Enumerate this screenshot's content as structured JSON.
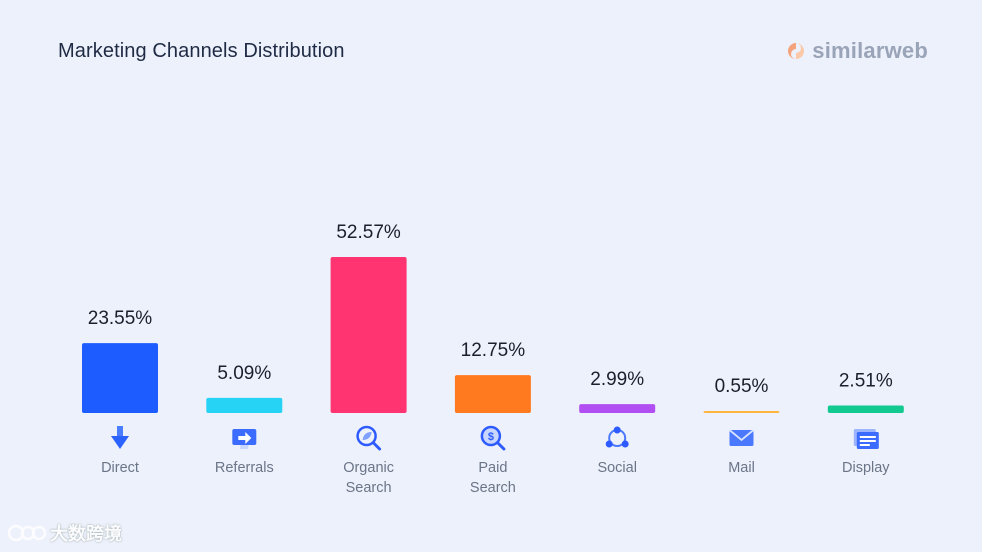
{
  "title": "Marketing Channels Distribution",
  "brand": {
    "name": "similarweb",
    "icon": "similarweb-logo-icon"
  },
  "watermark": {
    "text": "大数跨境"
  },
  "chart_data": {
    "type": "bar",
    "title": "Marketing Channels Distribution",
    "categories": [
      "Direct",
      "Referrals",
      "Organic Search",
      "Paid Search",
      "Social",
      "Mail",
      "Display"
    ],
    "labels": [
      [
        "Direct"
      ],
      [
        "Referrals"
      ],
      [
        "Organic",
        "Search"
      ],
      [
        "Paid",
        "Search"
      ],
      [
        "Social"
      ],
      [
        "Mail"
      ],
      [
        "Display"
      ]
    ],
    "values": [
      23.55,
      5.09,
      52.57,
      12.75,
      2.99,
      0.55,
      2.51
    ],
    "value_labels": [
      "23.55%",
      "5.09%",
      "52.57%",
      "12.75%",
      "2.99%",
      "0.55%",
      "2.51%"
    ],
    "colors": [
      "#1d5cff",
      "#27d3f5",
      "#ff3470",
      "#ff7a1f",
      "#b14ff2",
      "#ffb43d",
      "#12c98f"
    ],
    "icons": [
      "direct-arrow-icon",
      "referrals-icon",
      "organic-search-icon",
      "paid-search-icon",
      "social-icon",
      "mail-icon",
      "display-icon"
    ],
    "ylim": [
      0,
      52.57
    ],
    "grid": false,
    "legend": "none"
  }
}
